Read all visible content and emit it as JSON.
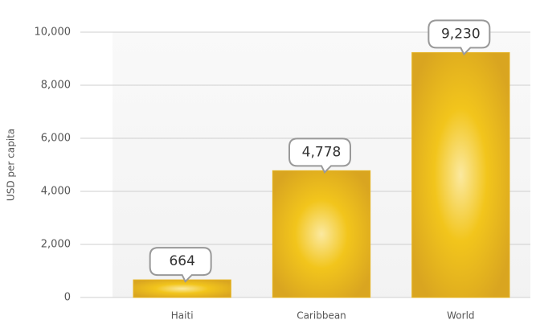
{
  "chart_data": {
    "type": "bar",
    "y_label": "USD per capita",
    "categories": [
      "Haiti",
      "Caribbean",
      "World"
    ],
    "values": [
      664,
      4778,
      9230
    ],
    "value_labels": [
      "664",
      "4,778",
      "9,230"
    ],
    "color": "#e6b422",
    "ylim": [
      0,
      10000
    ],
    "yticks": [
      0,
      {
        "value": 2000,
        "label": "2,000"
      },
      {
        "value": 4000,
        "label": "4,000"
      },
      {
        "value": 6000,
        "label": "6,000"
      },
      {
        "value": 8000,
        "label": "8,000"
      },
      {
        "value": 10000,
        "label": "10,000"
      }
    ],
    "grid": true
  }
}
